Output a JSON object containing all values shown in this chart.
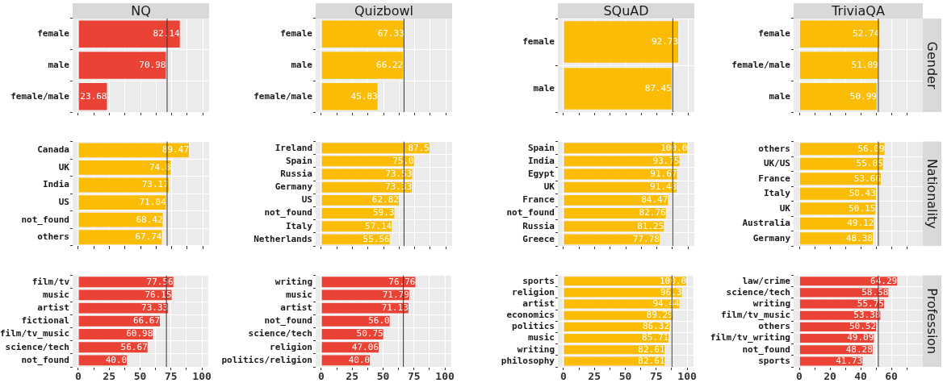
{
  "chart_data": [
    {
      "type": "bar",
      "orientation": "horizontal",
      "title": "NQ",
      "categories": [
        "female",
        "male",
        "female/male"
      ],
      "values": [
        82.14,
        70.98,
        23.68
      ],
      "value_labels": [
        "82.14",
        "70.98",
        "23.68"
      ],
      "color": "#ea4335",
      "xlim": [
        -4.5,
        105
      ],
      "xticks": [
        {
          "value": 0,
          "label": null
        },
        {
          "value": 12.5,
          "label": null
        },
        {
          "value": 25,
          "label": null
        },
        {
          "value": 37.5,
          "label": null
        },
        {
          "value": 50,
          "label": null
        },
        {
          "value": 62.5,
          "label": null
        },
        {
          "value": 75,
          "label": null
        },
        {
          "value": 87.5,
          "label": null
        },
        {
          "value": 100,
          "label": null
        }
      ],
      "ref_lines": [
        {
          "axis": "x",
          "value": 71.3,
          "color": "#333333"
        }
      ],
      "grid": true
    },
    {
      "type": "bar",
      "orientation": "horizontal",
      "title": "Quizbowl",
      "categories": [
        "female",
        "male",
        "female/male"
      ],
      "values": [
        67.33,
        66.22,
        45.83
      ],
      "value_labels": [
        "67.33",
        "66.22",
        "45.83"
      ],
      "color": "#fbbc05",
      "xlim": [
        -4.5,
        105
      ],
      "xticks": [
        {
          "value": 0,
          "label": null
        },
        {
          "value": 12.5,
          "label": null
        },
        {
          "value": 25,
          "label": null
        },
        {
          "value": 37.5,
          "label": null
        },
        {
          "value": 50,
          "label": null
        },
        {
          "value": 62.5,
          "label": null
        },
        {
          "value": 75,
          "label": null
        },
        {
          "value": 87.5,
          "label": null
        },
        {
          "value": 100,
          "label": null
        }
      ],
      "ref_lines": [
        {
          "axis": "x",
          "value": 66.4,
          "color": "#333333"
        }
      ],
      "grid": true
    },
    {
      "type": "bar",
      "orientation": "horizontal",
      "title": "SQuAD",
      "categories": [
        "female",
        "male"
      ],
      "values": [
        92.73,
        87.45
      ],
      "value_labels": [
        "92.73",
        "87.45"
      ],
      "color": "#fbbc05",
      "xlim": [
        -4.5,
        105
      ],
      "xticks": [
        {
          "value": 0,
          "label": null
        },
        {
          "value": 12.5,
          "label": null
        },
        {
          "value": 25,
          "label": null
        },
        {
          "value": 37.5,
          "label": null
        },
        {
          "value": 50,
          "label": null
        },
        {
          "value": 62.5,
          "label": null
        },
        {
          "value": 75,
          "label": null
        },
        {
          "value": 87.5,
          "label": null
        },
        {
          "value": 100,
          "label": null
        }
      ],
      "ref_lines": [
        {
          "axis": "x",
          "value": 87.7,
          "color": "#333333"
        }
      ],
      "grid": true
    },
    {
      "type": "bar",
      "orientation": "horizontal",
      "title": "TriviaQA",
      "annotations": [
        "Gender"
      ],
      "categories": [
        "female",
        "female/male",
        "male"
      ],
      "values": [
        52.74,
        51.89,
        50.99
      ],
      "value_labels": [
        "52.74",
        "51.89",
        "50.99"
      ],
      "color": "#fbbc05",
      "xlim": [
        -3.7,
        80.5
      ],
      "xticks": [
        {
          "value": 0,
          "label": null
        },
        {
          "value": 10,
          "label": null
        },
        {
          "value": 20,
          "label": null
        },
        {
          "value": 30,
          "label": null
        },
        {
          "value": 40,
          "label": null
        },
        {
          "value": 50,
          "label": null
        },
        {
          "value": 60,
          "label": null
        },
        {
          "value": 70,
          "label": null
        }
      ],
      "ref_lines": [
        {
          "axis": "x",
          "value": 51.5,
          "color": "#333333"
        }
      ],
      "grid": true
    },
    {
      "type": "bar",
      "orientation": "horizontal",
      "categories": [
        "Canada",
        "UK",
        "India",
        "US",
        "not_found",
        "others"
      ],
      "values": [
        89.47,
        74.8,
        73.17,
        71.04,
        68.42,
        67.74
      ],
      "value_labels": [
        "89.47",
        "74.8",
        "73.17",
        "71.04",
        "68.42",
        "67.74"
      ],
      "color": "#fbbc05",
      "xlim": [
        -4.5,
        105
      ],
      "xticks": [
        {
          "value": 0,
          "label": null
        },
        {
          "value": 12.5,
          "label": null
        },
        {
          "value": 25,
          "label": null
        },
        {
          "value": 37.5,
          "label": null
        },
        {
          "value": 50,
          "label": null
        },
        {
          "value": 62.5,
          "label": null
        },
        {
          "value": 75,
          "label": null
        },
        {
          "value": 87.5,
          "label": null
        },
        {
          "value": 100,
          "label": null
        }
      ],
      "ref_lines": [
        {
          "axis": "x",
          "value": 71.3,
          "color": "#333333"
        }
      ],
      "grid": true
    },
    {
      "type": "bar",
      "orientation": "horizontal",
      "categories": [
        "Ireland",
        "Spain",
        "Russia",
        "Germany",
        "US",
        "not_found",
        "Italy",
        "Netherlands"
      ],
      "values": [
        87.5,
        75.0,
        73.53,
        73.33,
        62.82,
        59.3,
        57.14,
        55.56
      ],
      "value_labels": [
        "87.5",
        "75.0",
        "73.53",
        "73.33",
        "62.82",
        "59.3",
        "57.14",
        "55.56"
      ],
      "color": "#fbbc05",
      "xlim": [
        -4.5,
        105
      ],
      "xticks": [
        {
          "value": 0,
          "label": null
        },
        {
          "value": 12.5,
          "label": null
        },
        {
          "value": 25,
          "label": null
        },
        {
          "value": 37.5,
          "label": null
        },
        {
          "value": 50,
          "label": null
        },
        {
          "value": 62.5,
          "label": null
        },
        {
          "value": 75,
          "label": null
        },
        {
          "value": 87.5,
          "label": null
        },
        {
          "value": 100,
          "label": null
        }
      ],
      "ref_lines": [
        {
          "axis": "x",
          "value": 66.4,
          "color": "#333333"
        }
      ],
      "grid": true
    },
    {
      "type": "bar",
      "orientation": "horizontal",
      "categories": [
        "Spain",
        "India",
        "Egypt",
        "UK",
        "France",
        "not_found",
        "Russia",
        "Greece"
      ],
      "values": [
        100.0,
        93.75,
        91.67,
        91.48,
        84.47,
        82.76,
        81.25,
        77.78
      ],
      "value_labels": [
        "100.0",
        "93.75",
        "91.67",
        "91.48",
        "84.47",
        "82.76",
        "81.25",
        "77.78"
      ],
      "color": "#fbbc05",
      "xlim": [
        -4.5,
        105
      ],
      "xticks": [
        {
          "value": 0,
          "label": null
        },
        {
          "value": 12.5,
          "label": null
        },
        {
          "value": 25,
          "label": null
        },
        {
          "value": 37.5,
          "label": null
        },
        {
          "value": 50,
          "label": null
        },
        {
          "value": 62.5,
          "label": null
        },
        {
          "value": 75,
          "label": null
        },
        {
          "value": 87.5,
          "label": null
        },
        {
          "value": 100,
          "label": null
        }
      ],
      "ref_lines": [
        {
          "axis": "x",
          "value": 87.7,
          "color": "#333333"
        }
      ],
      "grid": true
    },
    {
      "type": "bar",
      "orientation": "horizontal",
      "annotations": [
        "Nationality"
      ],
      "categories": [
        "others",
        "UK/US",
        "France",
        "Italy",
        "UK",
        "Australia",
        "Germany"
      ],
      "values": [
        56.09,
        55.05,
        53.66,
        50.43,
        50.15,
        49.12,
        48.38
      ],
      "value_labels": [
        "56.09",
        "55.05",
        "53.66",
        "50.43",
        "50.15",
        "49.12",
        "48.38"
      ],
      "color": "#fbbc05",
      "xlim": [
        -3.7,
        80.5
      ],
      "xticks": [
        {
          "value": 0,
          "label": null
        },
        {
          "value": 10,
          "label": null
        },
        {
          "value": 20,
          "label": null
        },
        {
          "value": 30,
          "label": null
        },
        {
          "value": 40,
          "label": null
        },
        {
          "value": 50,
          "label": null
        },
        {
          "value": 60,
          "label": null
        },
        {
          "value": 70,
          "label": null
        }
      ],
      "ref_lines": [
        {
          "axis": "x",
          "value": 51.5,
          "color": "#333333"
        }
      ],
      "grid": true
    },
    {
      "type": "bar",
      "orientation": "horizontal",
      "categories": [
        "film/tv",
        "music",
        "artist",
        "fictional",
        "film/tv_music",
        "science/tech",
        "not_found"
      ],
      "values": [
        77.56,
        76.15,
        73.33,
        66.67,
        60.98,
        56.67,
        40.0
      ],
      "value_labels": [
        "77.56",
        "76.15",
        "73.33",
        "66.67",
        "60.98",
        "56.67",
        "40.0"
      ],
      "color": "#ea4335",
      "xlim": [
        -4.5,
        105
      ],
      "xticks": [
        {
          "value": 0,
          "label": "0"
        },
        {
          "value": 12.5,
          "label": null
        },
        {
          "value": 25,
          "label": "25"
        },
        {
          "value": 37.5,
          "label": null
        },
        {
          "value": 50,
          "label": "50"
        },
        {
          "value": 62.5,
          "label": null
        },
        {
          "value": 75,
          "label": "75"
        },
        {
          "value": 87.5,
          "label": null
        },
        {
          "value": 100,
          "label": "100"
        }
      ],
      "ref_lines": [
        {
          "axis": "x",
          "value": 71.3,
          "color": "#333333"
        }
      ],
      "grid": true
    },
    {
      "type": "bar",
      "orientation": "horizontal",
      "categories": [
        "writing",
        "music",
        "artist",
        "not_found",
        "science/tech",
        "religion",
        "politics/religion"
      ],
      "values": [
        76.76,
        71.79,
        71.13,
        56.0,
        50.75,
        47.06,
        40.0
      ],
      "value_labels": [
        "76.76",
        "71.79",
        "71.13",
        "56.0",
        "50.75",
        "47.06",
        "40.0"
      ],
      "color": "#ea4335",
      "xlim": [
        -4.5,
        105
      ],
      "xticks": [
        {
          "value": 0,
          "label": "0"
        },
        {
          "value": 12.5,
          "label": null
        },
        {
          "value": 25,
          "label": "25"
        },
        {
          "value": 37.5,
          "label": null
        },
        {
          "value": 50,
          "label": "50"
        },
        {
          "value": 62.5,
          "label": null
        },
        {
          "value": 75,
          "label": "75"
        },
        {
          "value": 87.5,
          "label": null
        },
        {
          "value": 100,
          "label": "100"
        }
      ],
      "ref_lines": [
        {
          "axis": "x",
          "value": 66.4,
          "color": "#333333"
        }
      ],
      "grid": true
    },
    {
      "type": "bar",
      "orientation": "horizontal",
      "categories": [
        "sports",
        "religion",
        "artist",
        "economics",
        "politics",
        "music",
        "writing",
        "philosophy"
      ],
      "values": [
        100.0,
        96.3,
        94.44,
        89.29,
        86.32,
        85.71,
        82.61,
        82.61
      ],
      "value_labels": [
        "100.0",
        "96.3",
        "94.44",
        "89.29",
        "86.32",
        "85.71",
        "82.61",
        "82.61"
      ],
      "color": "#fbbc05",
      "xlim": [
        -4.5,
        105
      ],
      "xticks": [
        {
          "value": 0,
          "label": "0"
        },
        {
          "value": 12.5,
          "label": null
        },
        {
          "value": 25,
          "label": "25"
        },
        {
          "value": 37.5,
          "label": null
        },
        {
          "value": 50,
          "label": "50"
        },
        {
          "value": 62.5,
          "label": null
        },
        {
          "value": 75,
          "label": "75"
        },
        {
          "value": 87.5,
          "label": null
        },
        {
          "value": 100,
          "label": "100"
        }
      ],
      "ref_lines": [
        {
          "axis": "x",
          "value": 87.7,
          "color": "#333333"
        }
      ],
      "grid": true
    },
    {
      "type": "bar",
      "orientation": "horizontal",
      "annotations": [
        "Profession"
      ],
      "categories": [
        "law/crime",
        "science/tech",
        "writing",
        "film/tv_music",
        "others",
        "film/tv_writing",
        "not_found",
        "sports"
      ],
      "values": [
        64.29,
        58.58,
        55.75,
        53.38,
        50.52,
        49.09,
        48.28,
        41.73
      ],
      "value_labels": [
        "64.29",
        "58.58",
        "55.75",
        "53.38",
        "50.52",
        "49.09",
        "48.28",
        "41.73"
      ],
      "color": "#ea4335",
      "xlim": [
        -3.7,
        80.5
      ],
      "xticks": [
        {
          "value": 0,
          "label": "0"
        },
        {
          "value": 10,
          "label": null
        },
        {
          "value": 20,
          "label": "20"
        },
        {
          "value": 30,
          "label": null
        },
        {
          "value": 40,
          "label": "40"
        },
        {
          "value": 50,
          "label": null
        },
        {
          "value": 60,
          "label": "60"
        },
        {
          "value": 70,
          "label": null
        }
      ],
      "ref_lines": [
        {
          "axis": "x",
          "value": 51.5,
          "color": "#333333"
        }
      ],
      "grid": true
    }
  ]
}
